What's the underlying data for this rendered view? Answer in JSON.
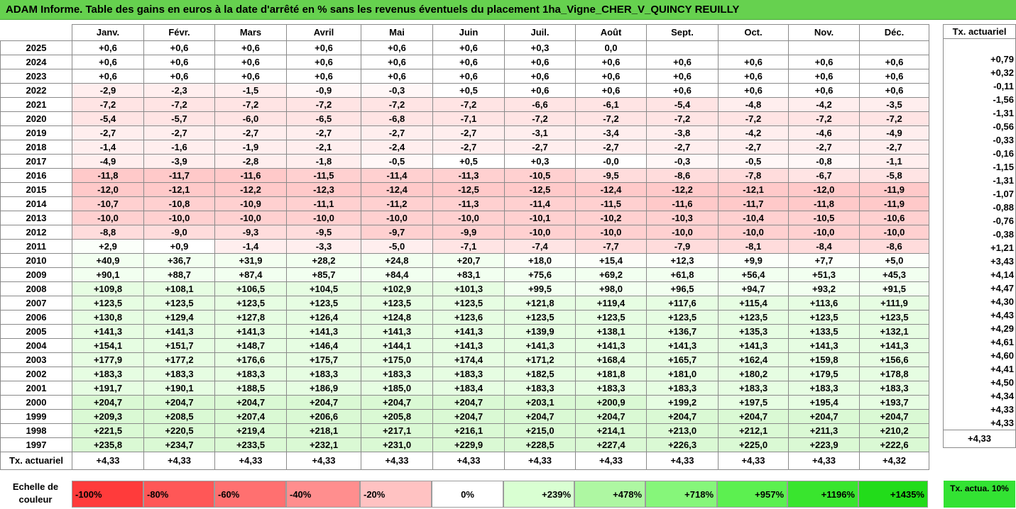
{
  "title": "ADAM Informe. Table des gains en euros à la date d'arrêté en % sans les revenus éventuels du placement 1ha_Vigne_CHER_V_QUINCY REUILLY",
  "months": [
    "Janv.",
    "Févr.",
    "Mars",
    "Avril",
    "Mai",
    "Juin",
    "Juil.",
    "Août",
    "Sept.",
    "Oct.",
    "Nov.",
    "Déc."
  ],
  "tx_header": "Tx. actuariel",
  "rows": [
    {
      "year": "2025",
      "v": [
        "+0,6",
        "+0,6",
        "+0,6",
        "+0,6",
        "+0,6",
        "+0,6",
        "+0,3",
        "0,0",
        "",
        "",
        "",
        ""
      ],
      "tx": ""
    },
    {
      "year": "2024",
      "v": [
        "+0,6",
        "+0,6",
        "+0,6",
        "+0,6",
        "+0,6",
        "+0,6",
        "+0,6",
        "+0,6",
        "+0,6",
        "+0,6",
        "+0,6",
        "+0,6"
      ],
      "tx": "+0,79"
    },
    {
      "year": "2023",
      "v": [
        "+0,6",
        "+0,6",
        "+0,6",
        "+0,6",
        "+0,6",
        "+0,6",
        "+0,6",
        "+0,6",
        "+0,6",
        "+0,6",
        "+0,6",
        "+0,6"
      ],
      "tx": "+0,32"
    },
    {
      "year": "2022",
      "v": [
        "-2,9",
        "-2,3",
        "-1,5",
        "-0,9",
        "-0,3",
        "+0,5",
        "+0,6",
        "+0,6",
        "+0,6",
        "+0,6",
        "+0,6",
        "+0,6"
      ],
      "tx": "-0,11"
    },
    {
      "year": "2021",
      "v": [
        "-7,2",
        "-7,2",
        "-7,2",
        "-7,2",
        "-7,2",
        "-7,2",
        "-6,6",
        "-6,1",
        "-5,4",
        "-4,8",
        "-4,2",
        "-3,5"
      ],
      "tx": "-1,56"
    },
    {
      "year": "2020",
      "v": [
        "-5,4",
        "-5,7",
        "-6,0",
        "-6,5",
        "-6,8",
        "-7,1",
        "-7,2",
        "-7,2",
        "-7,2",
        "-7,2",
        "-7,2",
        "-7,2"
      ],
      "tx": "-1,31"
    },
    {
      "year": "2019",
      "v": [
        "-2,7",
        "-2,7",
        "-2,7",
        "-2,7",
        "-2,7",
        "-2,7",
        "-3,1",
        "-3,4",
        "-3,8",
        "-4,2",
        "-4,6",
        "-4,9"
      ],
      "tx": "-0,56"
    },
    {
      "year": "2018",
      "v": [
        "-1,4",
        "-1,6",
        "-1,9",
        "-2,1",
        "-2,4",
        "-2,7",
        "-2,7",
        "-2,7",
        "-2,7",
        "-2,7",
        "-2,7",
        "-2,7"
      ],
      "tx": "-0,33"
    },
    {
      "year": "2017",
      "v": [
        "-4,9",
        "-3,9",
        "-2,8",
        "-1,8",
        "-0,5",
        "+0,5",
        "+0,3",
        "-0,0",
        "-0,3",
        "-0,5",
        "-0,8",
        "-1,1"
      ],
      "tx": "-0,16"
    },
    {
      "year": "2016",
      "v": [
        "-11,8",
        "-11,7",
        "-11,6",
        "-11,5",
        "-11,4",
        "-11,3",
        "-10,5",
        "-9,5",
        "-8,6",
        "-7,8",
        "-6,7",
        "-5,8"
      ],
      "tx": "-1,15"
    },
    {
      "year": "2015",
      "v": [
        "-12,0",
        "-12,1",
        "-12,2",
        "-12,3",
        "-12,4",
        "-12,5",
        "-12,5",
        "-12,4",
        "-12,2",
        "-12,1",
        "-12,0",
        "-11,9"
      ],
      "tx": "-1,31"
    },
    {
      "year": "2014",
      "v": [
        "-10,7",
        "-10,8",
        "-10,9",
        "-11,1",
        "-11,2",
        "-11,3",
        "-11,4",
        "-11,5",
        "-11,6",
        "-11,7",
        "-11,8",
        "-11,9"
      ],
      "tx": "-1,07"
    },
    {
      "year": "2013",
      "v": [
        "-10,0",
        "-10,0",
        "-10,0",
        "-10,0",
        "-10,0",
        "-10,0",
        "-10,1",
        "-10,2",
        "-10,3",
        "-10,4",
        "-10,5",
        "-10,6"
      ],
      "tx": "-0,88"
    },
    {
      "year": "2012",
      "v": [
        "-8,8",
        "-9,0",
        "-9,3",
        "-9,5",
        "-9,7",
        "-9,9",
        "-10,0",
        "-10,0",
        "-10,0",
        "-10,0",
        "-10,0",
        "-10,0"
      ],
      "tx": "-0,76"
    },
    {
      "year": "2011",
      "v": [
        "+2,9",
        "+0,9",
        "-1,4",
        "-3,3",
        "-5,0",
        "-7,1",
        "-7,4",
        "-7,7",
        "-7,9",
        "-8,1",
        "-8,4",
        "-8,6"
      ],
      "tx": "-0,38"
    },
    {
      "year": "2010",
      "v": [
        "+40,9",
        "+36,7",
        "+31,9",
        "+28,2",
        "+24,8",
        "+20,7",
        "+18,0",
        "+15,4",
        "+12,3",
        "+9,9",
        "+7,7",
        "+5,0"
      ],
      "tx": "+1,21"
    },
    {
      "year": "2009",
      "v": [
        "+90,1",
        "+88,7",
        "+87,4",
        "+85,7",
        "+84,4",
        "+83,1",
        "+75,6",
        "+69,2",
        "+61,8",
        "+56,4",
        "+51,3",
        "+45,3"
      ],
      "tx": "+3,43"
    },
    {
      "year": "2008",
      "v": [
        "+109,8",
        "+108,1",
        "+106,5",
        "+104,5",
        "+102,9",
        "+101,3",
        "+99,5",
        "+98,0",
        "+96,5",
        "+94,7",
        "+93,2",
        "+91,5"
      ],
      "tx": "+4,14"
    },
    {
      "year": "2007",
      "v": [
        "+123,5",
        "+123,5",
        "+123,5",
        "+123,5",
        "+123,5",
        "+123,5",
        "+121,8",
        "+119,4",
        "+117,6",
        "+115,4",
        "+113,6",
        "+111,9"
      ],
      "tx": "+4,47"
    },
    {
      "year": "2006",
      "v": [
        "+130,8",
        "+129,4",
        "+127,8",
        "+126,4",
        "+124,8",
        "+123,6",
        "+123,5",
        "+123,5",
        "+123,5",
        "+123,5",
        "+123,5",
        "+123,5"
      ],
      "tx": "+4,30"
    },
    {
      "year": "2005",
      "v": [
        "+141,3",
        "+141,3",
        "+141,3",
        "+141,3",
        "+141,3",
        "+141,3",
        "+139,9",
        "+138,1",
        "+136,7",
        "+135,3",
        "+133,5",
        "+132,1"
      ],
      "tx": "+4,43"
    },
    {
      "year": "2004",
      "v": [
        "+154,1",
        "+151,7",
        "+148,7",
        "+146,4",
        "+144,1",
        "+141,3",
        "+141,3",
        "+141,3",
        "+141,3",
        "+141,3",
        "+141,3",
        "+141,3"
      ],
      "tx": "+4,29"
    },
    {
      "year": "2003",
      "v": [
        "+177,9",
        "+177,2",
        "+176,6",
        "+175,7",
        "+175,0",
        "+174,4",
        "+171,2",
        "+168,4",
        "+165,7",
        "+162,4",
        "+159,8",
        "+156,6"
      ],
      "tx": "+4,61"
    },
    {
      "year": "2002",
      "v": [
        "+183,3",
        "+183,3",
        "+183,3",
        "+183,3",
        "+183,3",
        "+183,3",
        "+182,5",
        "+181,8",
        "+181,0",
        "+180,2",
        "+179,5",
        "+178,8"
      ],
      "tx": "+4,60"
    },
    {
      "year": "2001",
      "v": [
        "+191,7",
        "+190,1",
        "+188,5",
        "+186,9",
        "+185,0",
        "+183,4",
        "+183,3",
        "+183,3",
        "+183,3",
        "+183,3",
        "+183,3",
        "+183,3"
      ],
      "tx": "+4,41"
    },
    {
      "year": "2000",
      "v": [
        "+204,7",
        "+204,7",
        "+204,7",
        "+204,7",
        "+204,7",
        "+204,7",
        "+203,1",
        "+200,9",
        "+199,2",
        "+197,5",
        "+195,4",
        "+193,7"
      ],
      "tx": "+4,50"
    },
    {
      "year": "1999",
      "v": [
        "+209,3",
        "+208,5",
        "+207,4",
        "+206,6",
        "+205,8",
        "+204,7",
        "+204,7",
        "+204,7",
        "+204,7",
        "+204,7",
        "+204,7",
        "+204,7"
      ],
      "tx": "+4,34"
    },
    {
      "year": "1998",
      "v": [
        "+221,5",
        "+220,5",
        "+219,4",
        "+218,1",
        "+217,1",
        "+216,1",
        "+215,0",
        "+214,1",
        "+213,0",
        "+212,1",
        "+211,3",
        "+210,2"
      ],
      "tx": "+4,33"
    },
    {
      "year": "1997",
      "v": [
        "+235,8",
        "+234,7",
        "+233,5",
        "+232,1",
        "+231,0",
        "+229,9",
        "+228,5",
        "+227,4",
        "+226,3",
        "+225,0",
        "+223,9",
        "+222,6"
      ],
      "tx": "+4,33"
    }
  ],
  "total_row": {
    "label": "Tx. actuariel",
    "v": [
      "+4,33",
      "+4,33",
      "+4,33",
      "+4,33",
      "+4,33",
      "+4,33",
      "+4,33",
      "+4,33",
      "+4,33",
      "+4,33",
      "+4,33",
      "+4,32"
    ],
    "tx": "+4,33"
  },
  "legend": {
    "label": "Echelle de couleur",
    "swatches": [
      {
        "label": "-100%",
        "color": "#ff3b3b",
        "kind": "neg"
      },
      {
        "label": "-80%",
        "color": "#ff5757",
        "kind": "neg"
      },
      {
        "label": "-60%",
        "color": "#ff7070",
        "kind": "neg"
      },
      {
        "label": "-40%",
        "color": "#ff8e8e",
        "kind": "neg"
      },
      {
        "label": "-20%",
        "color": "#ffc2c2",
        "kind": "neg"
      },
      {
        "label": "0%",
        "color": "#ffffff",
        "kind": "zero"
      },
      {
        "label": "+239%",
        "color": "#d9ffd2",
        "kind": "pos"
      },
      {
        "label": "+478%",
        "color": "#aef7a2",
        "kind": "pos"
      },
      {
        "label": "+718%",
        "color": "#86f67a",
        "kind": "pos"
      },
      {
        "label": "+957%",
        "color": "#5cf050",
        "kind": "pos"
      },
      {
        "label": "+1196%",
        "color": "#39e52e",
        "kind": "pos"
      },
      {
        "label": "+1435%",
        "color": "#22dc1a",
        "kind": "pos"
      }
    ],
    "tx_label": "Tx. actua. 10%"
  },
  "colors": {
    "title_bg": "#66d14f",
    "neg_light": "#fff1f1",
    "neg_mid": "#ffdede",
    "neg_strong": "#ffc9c9",
    "pos_light": "#e9ffe6",
    "pos_mid": "#dcfbd7"
  }
}
